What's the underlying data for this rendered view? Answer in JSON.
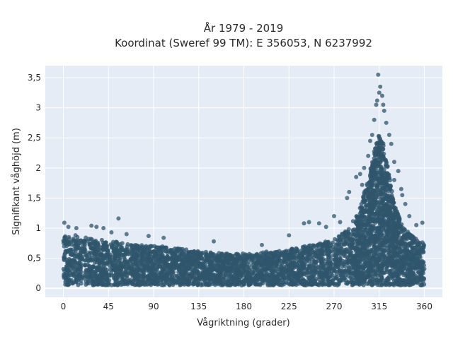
{
  "chart_data": {
    "type": "scatter",
    "title_lines": [
      "År 1979 - 2019",
      "Koordinat (Sweref 99 TM): E 356053, N 6237992"
    ],
    "xlabel": "Vågriktning (grader)",
    "ylabel": "Signifikant våghöjd (m)",
    "xlim": [
      -18,
      378
    ],
    "ylim": [
      -0.15,
      3.7
    ],
    "xticks": [
      0,
      45,
      90,
      135,
      180,
      225,
      270,
      315,
      360
    ],
    "yticks": [
      0,
      0.5,
      1,
      1.5,
      2,
      2.5,
      3,
      3.5
    ],
    "ytick_labels": [
      "0",
      "0,5",
      "1",
      "1,5",
      "2",
      "2,5",
      "3",
      "3,5"
    ],
    "grid": true,
    "marker_color": "#2f566c",
    "plot_background": "#e5ecf6",
    "envelope": {
      "direction": [
        0,
        10,
        20,
        30,
        45,
        60,
        75,
        90,
        105,
        120,
        135,
        150,
        165,
        180,
        195,
        210,
        225,
        240,
        255,
        270,
        285,
        295,
        305,
        310,
        315,
        320,
        325,
        330,
        340,
        350,
        360
      ],
      "upper": [
        0.9,
        0.9,
        0.85,
        0.82,
        0.8,
        0.75,
        0.72,
        0.72,
        0.68,
        0.66,
        0.62,
        0.6,
        0.58,
        0.58,
        0.6,
        0.62,
        0.65,
        0.7,
        0.75,
        0.82,
        1.0,
        1.3,
        1.9,
        2.3,
        2.6,
        2.4,
        1.9,
        1.4,
        1.0,
        0.85,
        0.75
      ],
      "lower": [
        0.05,
        0.05,
        0.05,
        0.05,
        0.05,
        0.05,
        0.05,
        0.05,
        0.05,
        0.05,
        0.05,
        0.05,
        0.05,
        0.05,
        0.05,
        0.05,
        0.05,
        0.05,
        0.05,
        0.05,
        0.05,
        0.05,
        0.05,
        0.05,
        0.05,
        0.05,
        0.05,
        0.05,
        0.05,
        0.05,
        0.05
      ]
    },
    "outliers": [
      {
        "x": 1,
        "y": 1.09
      },
      {
        "x": 5,
        "y": 1.02
      },
      {
        "x": 13,
        "y": 1.0
      },
      {
        "x": 28,
        "y": 1.04
      },
      {
        "x": 33,
        "y": 1.02
      },
      {
        "x": 40,
        "y": 1.0
      },
      {
        "x": 55,
        "y": 1.16
      },
      {
        "x": 48,
        "y": 0.93
      },
      {
        "x": 63,
        "y": 0.9
      },
      {
        "x": 85,
        "y": 0.87
      },
      {
        "x": 100,
        "y": 0.84
      },
      {
        "x": 150,
        "y": 0.78
      },
      {
        "x": 198,
        "y": 0.72
      },
      {
        "x": 225,
        "y": 0.88
      },
      {
        "x": 240,
        "y": 1.08
      },
      {
        "x": 245,
        "y": 1.1
      },
      {
        "x": 255,
        "y": 1.08
      },
      {
        "x": 262,
        "y": 1.02
      },
      {
        "x": 270,
        "y": 1.2
      },
      {
        "x": 283,
        "y": 1.5
      },
      {
        "x": 285,
        "y": 1.6
      },
      {
        "x": 292,
        "y": 1.85
      },
      {
        "x": 296,
        "y": 1.9
      },
      {
        "x": 300,
        "y": 2.0
      },
      {
        "x": 304,
        "y": 2.2
      },
      {
        "x": 308,
        "y": 2.55
      },
      {
        "x": 310,
        "y": 2.8
      },
      {
        "x": 312,
        "y": 3.05
      },
      {
        "x": 313,
        "y": 3.12
      },
      {
        "x": 315,
        "y": 3.25
      },
      {
        "x": 316,
        "y": 3.35
      },
      {
        "x": 318,
        "y": 3.2
      },
      {
        "x": 319,
        "y": 3.05
      },
      {
        "x": 320,
        "y": 2.95
      },
      {
        "x": 322,
        "y": 2.75
      },
      {
        "x": 325,
        "y": 2.55
      },
      {
        "x": 327,
        "y": 2.4
      },
      {
        "x": 330,
        "y": 2.1
      },
      {
        "x": 334,
        "y": 1.95
      },
      {
        "x": 337,
        "y": 1.65
      },
      {
        "x": 338,
        "y": 1.55
      },
      {
        "x": 341,
        "y": 1.4
      },
      {
        "x": 345,
        "y": 1.2
      },
      {
        "x": 352,
        "y": 1.05
      },
      {
        "x": 358,
        "y": 1.09
      },
      {
        "x": 314,
        "y": 3.55
      },
      {
        "x": 306,
        "y": 2.45
      },
      {
        "x": 298,
        "y": 1.72
      },
      {
        "x": 276,
        "y": 1.1
      },
      {
        "x": 330,
        "y": 1.8
      }
    ]
  }
}
